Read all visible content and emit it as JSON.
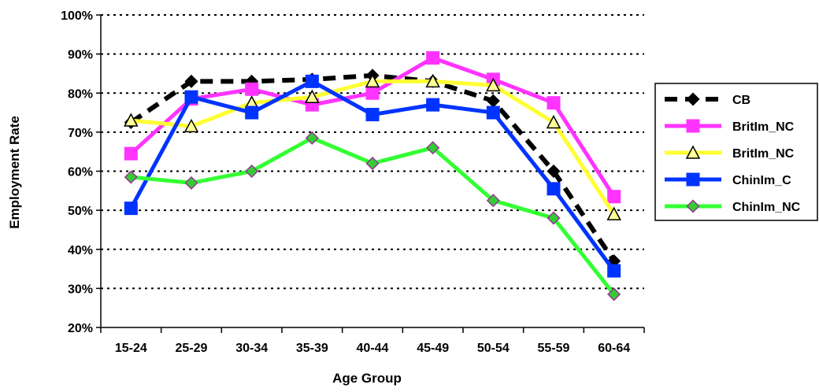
{
  "chart_data": {
    "type": "line",
    "xlabel": "Age Group",
    "ylabel": "Employment Rate",
    "categories": [
      "15-24",
      "25-29",
      "30-34",
      "35-39",
      "40-44",
      "45-49",
      "50-54",
      "55-59",
      "60-64"
    ],
    "ylim": [
      20,
      100
    ],
    "yticks": [
      20,
      30,
      40,
      50,
      60,
      70,
      80,
      90,
      100
    ],
    "ytick_labels": [
      "20%",
      "30%",
      "40%",
      "50%",
      "60%",
      "70%",
      "80%",
      "90%",
      "100%"
    ],
    "grid": "horizontal dotted",
    "legend_position": "right",
    "series": [
      {
        "name": "CB",
        "color": "#000000",
        "dash": true,
        "marker": "diamond",
        "marker_fill": "#000000",
        "values": [
          72.5,
          83,
          83,
          83.5,
          84.5,
          83,
          78,
          60,
          37
        ]
      },
      {
        "name": "BritIm_NC",
        "color": "#ff33ff",
        "marker": "square",
        "marker_fill": "#ff33ff",
        "values": [
          64.5,
          78.5,
          81,
          77,
          80,
          89,
          83.5,
          77.5,
          53.5
        ]
      },
      {
        "name": "BritIm_NC",
        "color": "#ffff33",
        "marker": "triangle",
        "marker_fill": "#ffff99",
        "values": [
          73,
          71.5,
          77.5,
          79,
          83,
          83,
          82,
          72.5,
          49
        ]
      },
      {
        "name": "ChinIm_C",
        "color": "#0033ff",
        "marker": "square",
        "marker_fill": "#0033ff",
        "values": [
          50.5,
          79,
          75,
          83,
          74.5,
          77,
          75,
          55.5,
          34.5
        ]
      },
      {
        "name": "ChinIm_NC",
        "color": "#33ff33",
        "marker": "diamond",
        "marker_fill": "#33cc33",
        "values": [
          58.5,
          57,
          60,
          68.5,
          62,
          66,
          52.5,
          48,
          28.5
        ]
      }
    ]
  }
}
